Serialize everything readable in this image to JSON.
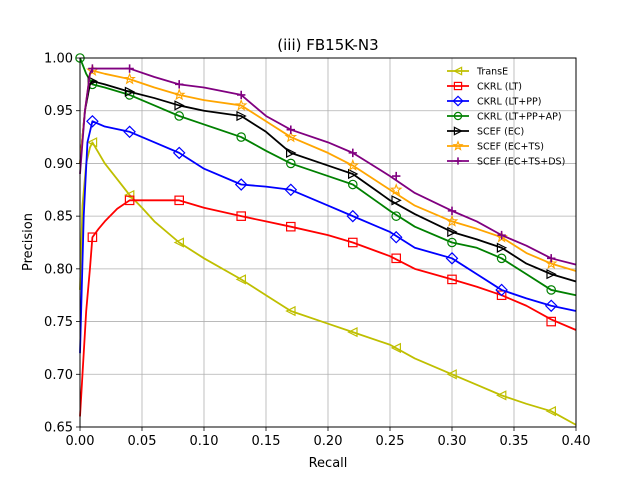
{
  "chart_data": {
    "type": "line",
    "title": "(iii) FB15K-N3",
    "xlabel": "Recall",
    "ylabel": "Precision",
    "xlim": [
      0,
      0.4
    ],
    "ylim": [
      0.65,
      1.0
    ],
    "xticks": [
      "0.00",
      "0.05",
      "0.10",
      "0.15",
      "0.20",
      "0.25",
      "0.30",
      "0.35",
      "0.40"
    ],
    "yticks": [
      "0.65",
      "0.70",
      "0.75",
      "0.80",
      "0.85",
      "0.90",
      "0.95",
      "1.00"
    ],
    "grid": true,
    "legend_position": "top-right",
    "series": [
      {
        "name": "TransE",
        "color": "#bfbf00",
        "marker": "triangle-left",
        "x": [
          0.0,
          0.002,
          0.005,
          0.008,
          0.01,
          0.02,
          0.03,
          0.04,
          0.05,
          0.06,
          0.08,
          0.1,
          0.13,
          0.15,
          0.17,
          0.2,
          0.22,
          0.25,
          0.27,
          0.3,
          0.32,
          0.34,
          0.36,
          0.38,
          0.4
        ],
        "y": [
          0.78,
          0.86,
          0.9,
          0.915,
          0.92,
          0.9,
          0.885,
          0.87,
          0.858,
          0.845,
          0.825,
          0.81,
          0.79,
          0.775,
          0.76,
          0.748,
          0.74,
          0.728,
          0.715,
          0.7,
          0.69,
          0.68,
          0.672,
          0.665,
          0.652
        ],
        "markers_x": [
          0.01,
          0.04,
          0.08,
          0.13,
          0.17,
          0.22,
          0.255,
          0.3,
          0.34,
          0.38
        ],
        "markers_y": [
          0.92,
          0.87,
          0.825,
          0.79,
          0.76,
          0.74,
          0.725,
          0.7,
          0.68,
          0.665
        ]
      },
      {
        "name": "CKRL (LT)",
        "color": "#ff0000",
        "marker": "square",
        "x": [
          0.0,
          0.002,
          0.005,
          0.008,
          0.01,
          0.015,
          0.02,
          0.03,
          0.04,
          0.06,
          0.08,
          0.1,
          0.13,
          0.15,
          0.17,
          0.2,
          0.22,
          0.25,
          0.27,
          0.3,
          0.32,
          0.34,
          0.36,
          0.38,
          0.4
        ],
        "y": [
          0.66,
          0.7,
          0.76,
          0.8,
          0.83,
          0.838,
          0.845,
          0.857,
          0.865,
          0.865,
          0.865,
          0.858,
          0.85,
          0.845,
          0.84,
          0.832,
          0.825,
          0.812,
          0.8,
          0.79,
          0.783,
          0.775,
          0.765,
          0.752,
          0.742
        ],
        "markers_x": [
          0.01,
          0.04,
          0.08,
          0.13,
          0.17,
          0.22,
          0.255,
          0.3,
          0.34,
          0.38
        ],
        "markers_y": [
          0.83,
          0.865,
          0.865,
          0.85,
          0.84,
          0.825,
          0.81,
          0.79,
          0.775,
          0.75
        ]
      },
      {
        "name": "CKRL (LT+PP)",
        "color": "#0000ff",
        "marker": "diamond",
        "x": [
          0.0,
          0.003,
          0.006,
          0.01,
          0.02,
          0.04,
          0.06,
          0.08,
          0.1,
          0.13,
          0.15,
          0.17,
          0.2,
          0.22,
          0.25,
          0.27,
          0.3,
          0.32,
          0.34,
          0.36,
          0.38,
          0.4
        ],
        "y": [
          0.72,
          0.85,
          0.92,
          0.94,
          0.935,
          0.93,
          0.92,
          0.91,
          0.895,
          0.88,
          0.878,
          0.875,
          0.86,
          0.85,
          0.835,
          0.82,
          0.81,
          0.795,
          0.78,
          0.772,
          0.765,
          0.76
        ],
        "markers_x": [
          0.01,
          0.04,
          0.08,
          0.13,
          0.17,
          0.22,
          0.255,
          0.3,
          0.34,
          0.38
        ],
        "markers_y": [
          0.94,
          0.93,
          0.91,
          0.88,
          0.875,
          0.85,
          0.83,
          0.81,
          0.78,
          0.765
        ]
      },
      {
        "name": "CKRL (LT+PP+AP)",
        "color": "#008000",
        "marker": "circle",
        "x": [
          0.0,
          0.005,
          0.01,
          0.02,
          0.04,
          0.06,
          0.08,
          0.1,
          0.13,
          0.15,
          0.17,
          0.2,
          0.22,
          0.25,
          0.27,
          0.3,
          0.32,
          0.34,
          0.36,
          0.38,
          0.4
        ],
        "y": [
          1.0,
          0.985,
          0.975,
          0.972,
          0.965,
          0.955,
          0.945,
          0.937,
          0.925,
          0.912,
          0.9,
          0.888,
          0.88,
          0.855,
          0.84,
          0.825,
          0.82,
          0.81,
          0.795,
          0.78,
          0.775
        ],
        "markers_x": [
          0.0,
          0.01,
          0.04,
          0.08,
          0.13,
          0.17,
          0.22,
          0.255,
          0.3,
          0.34,
          0.38
        ],
        "markers_y": [
          1.0,
          0.975,
          0.965,
          0.945,
          0.925,
          0.9,
          0.88,
          0.85,
          0.825,
          0.81,
          0.78
        ]
      },
      {
        "name": "SCEF (EC)",
        "color": "#000000",
        "marker": "triangle-right",
        "x": [
          0.0,
          0.004,
          0.008,
          0.01,
          0.02,
          0.04,
          0.06,
          0.08,
          0.1,
          0.13,
          0.15,
          0.17,
          0.2,
          0.22,
          0.25,
          0.27,
          0.3,
          0.32,
          0.34,
          0.36,
          0.38,
          0.4
        ],
        "y": [
          0.9,
          0.95,
          0.975,
          0.978,
          0.975,
          0.968,
          0.962,
          0.955,
          0.95,
          0.945,
          0.93,
          0.91,
          0.898,
          0.89,
          0.865,
          0.852,
          0.835,
          0.828,
          0.82,
          0.805,
          0.795,
          0.788
        ],
        "markers_x": [
          0.01,
          0.04,
          0.08,
          0.13,
          0.17,
          0.22,
          0.255,
          0.3,
          0.34,
          0.38
        ],
        "markers_y": [
          0.978,
          0.968,
          0.955,
          0.945,
          0.91,
          0.89,
          0.865,
          0.835,
          0.82,
          0.795
        ]
      },
      {
        "name": "SCEF (EC+TS)",
        "color": "#ffa500",
        "marker": "star",
        "x": [
          0.0,
          0.004,
          0.008,
          0.01,
          0.02,
          0.04,
          0.06,
          0.08,
          0.1,
          0.13,
          0.15,
          0.17,
          0.2,
          0.22,
          0.25,
          0.27,
          0.3,
          0.32,
          0.34,
          0.36,
          0.38,
          0.4
        ],
        "y": [
          0.9,
          0.95,
          0.985,
          0.988,
          0.985,
          0.98,
          0.972,
          0.965,
          0.96,
          0.955,
          0.94,
          0.925,
          0.91,
          0.898,
          0.875,
          0.86,
          0.845,
          0.838,
          0.83,
          0.815,
          0.805,
          0.798
        ],
        "markers_x": [
          0.01,
          0.04,
          0.08,
          0.13,
          0.17,
          0.22,
          0.255,
          0.3,
          0.34,
          0.38
        ],
        "markers_y": [
          0.988,
          0.98,
          0.965,
          0.955,
          0.925,
          0.898,
          0.875,
          0.845,
          0.83,
          0.805
        ]
      },
      {
        "name": "SCEF (EC+TS+DS)",
        "color": "#800080",
        "marker": "plus",
        "x": [
          0.0,
          0.004,
          0.008,
          0.01,
          0.02,
          0.04,
          0.06,
          0.08,
          0.1,
          0.13,
          0.15,
          0.17,
          0.2,
          0.22,
          0.25,
          0.27,
          0.3,
          0.32,
          0.34,
          0.36,
          0.38,
          0.4
        ],
        "y": [
          0.89,
          0.95,
          0.985,
          0.99,
          0.99,
          0.99,
          0.982,
          0.975,
          0.972,
          0.965,
          0.945,
          0.932,
          0.92,
          0.91,
          0.888,
          0.872,
          0.855,
          0.845,
          0.832,
          0.822,
          0.81,
          0.804
        ],
        "markers_x": [
          0.01,
          0.04,
          0.08,
          0.13,
          0.17,
          0.22,
          0.255,
          0.3,
          0.34,
          0.38
        ],
        "markers_y": [
          0.99,
          0.99,
          0.975,
          0.965,
          0.932,
          0.91,
          0.888,
          0.855,
          0.832,
          0.81
        ]
      }
    ]
  }
}
